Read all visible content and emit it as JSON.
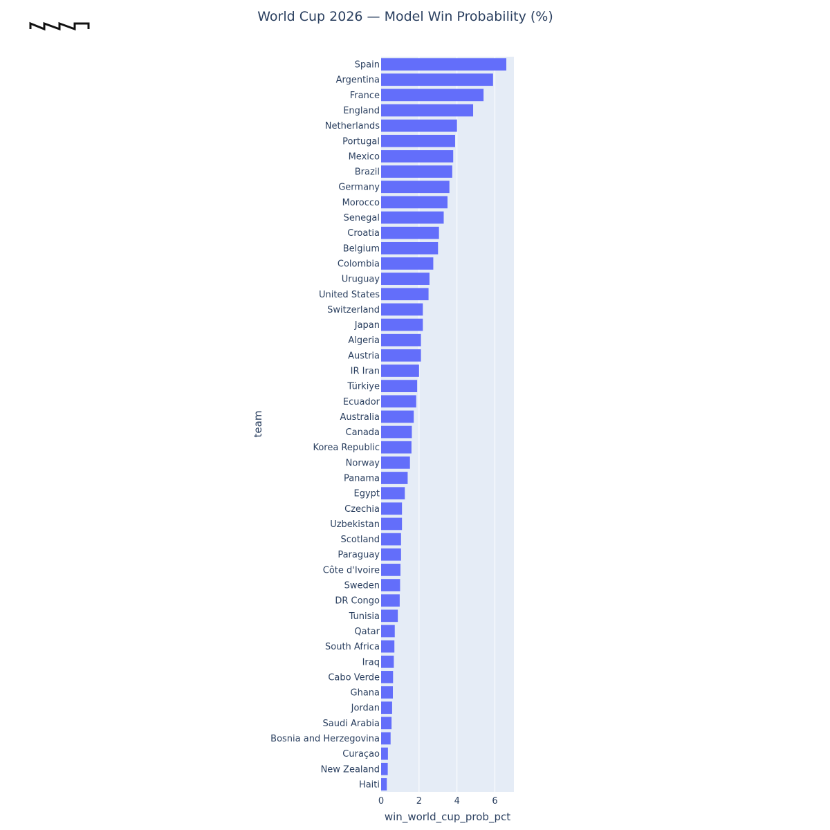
{
  "logo": {
    "icon": "brand-logo-icon",
    "color": "#111111"
  },
  "chart_data": {
    "type": "bar",
    "orientation": "horizontal",
    "title": "World Cup 2026 — Model Win Probability (%)",
    "xlabel": "win_world_cup_prob_pct",
    "ylabel": "team",
    "xlim": [
      0,
      7
    ],
    "xticks": [
      0,
      2,
      4,
      6
    ],
    "grid": true,
    "bar_color": "#636efa",
    "plot_bg": "#e5ecf6",
    "categories": [
      "Spain",
      "Argentina",
      "France",
      "England",
      "Netherlands",
      "Portugal",
      "Mexico",
      "Brazil",
      "Germany",
      "Morocco",
      "Senegal",
      "Croatia",
      "Belgium",
      "Colombia",
      "Uruguay",
      "United States",
      "Switzerland",
      "Japan",
      "Algeria",
      "Austria",
      "IR Iran",
      "Türkiye",
      "Ecuador",
      "Australia",
      "Canada",
      "Korea Republic",
      "Norway",
      "Panama",
      "Egypt",
      "Czechia",
      "Uzbekistan",
      "Scotland",
      "Paraguay",
      "Côte d'Ivoire",
      "Sweden",
      "DR Congo",
      "Tunisia",
      "Qatar",
      "South Africa",
      "Iraq",
      "Cabo Verde",
      "Ghana",
      "Jordan",
      "Saudi Arabia",
      "Bosnia and Herzegovina",
      "Curaçao",
      "New Zealand",
      "Haiti"
    ],
    "values": [
      6.6,
      5.9,
      5.4,
      4.85,
      4.0,
      3.9,
      3.8,
      3.75,
      3.6,
      3.5,
      3.3,
      3.05,
      3.0,
      2.75,
      2.55,
      2.5,
      2.2,
      2.2,
      2.1,
      2.1,
      2.0,
      1.9,
      1.85,
      1.72,
      1.62,
      1.6,
      1.52,
      1.4,
      1.25,
      1.1,
      1.1,
      1.05,
      1.05,
      1.02,
      1.0,
      0.98,
      0.88,
      0.72,
      0.7,
      0.67,
      0.63,
      0.62,
      0.58,
      0.55,
      0.5,
      0.36,
      0.35,
      0.3
    ]
  }
}
